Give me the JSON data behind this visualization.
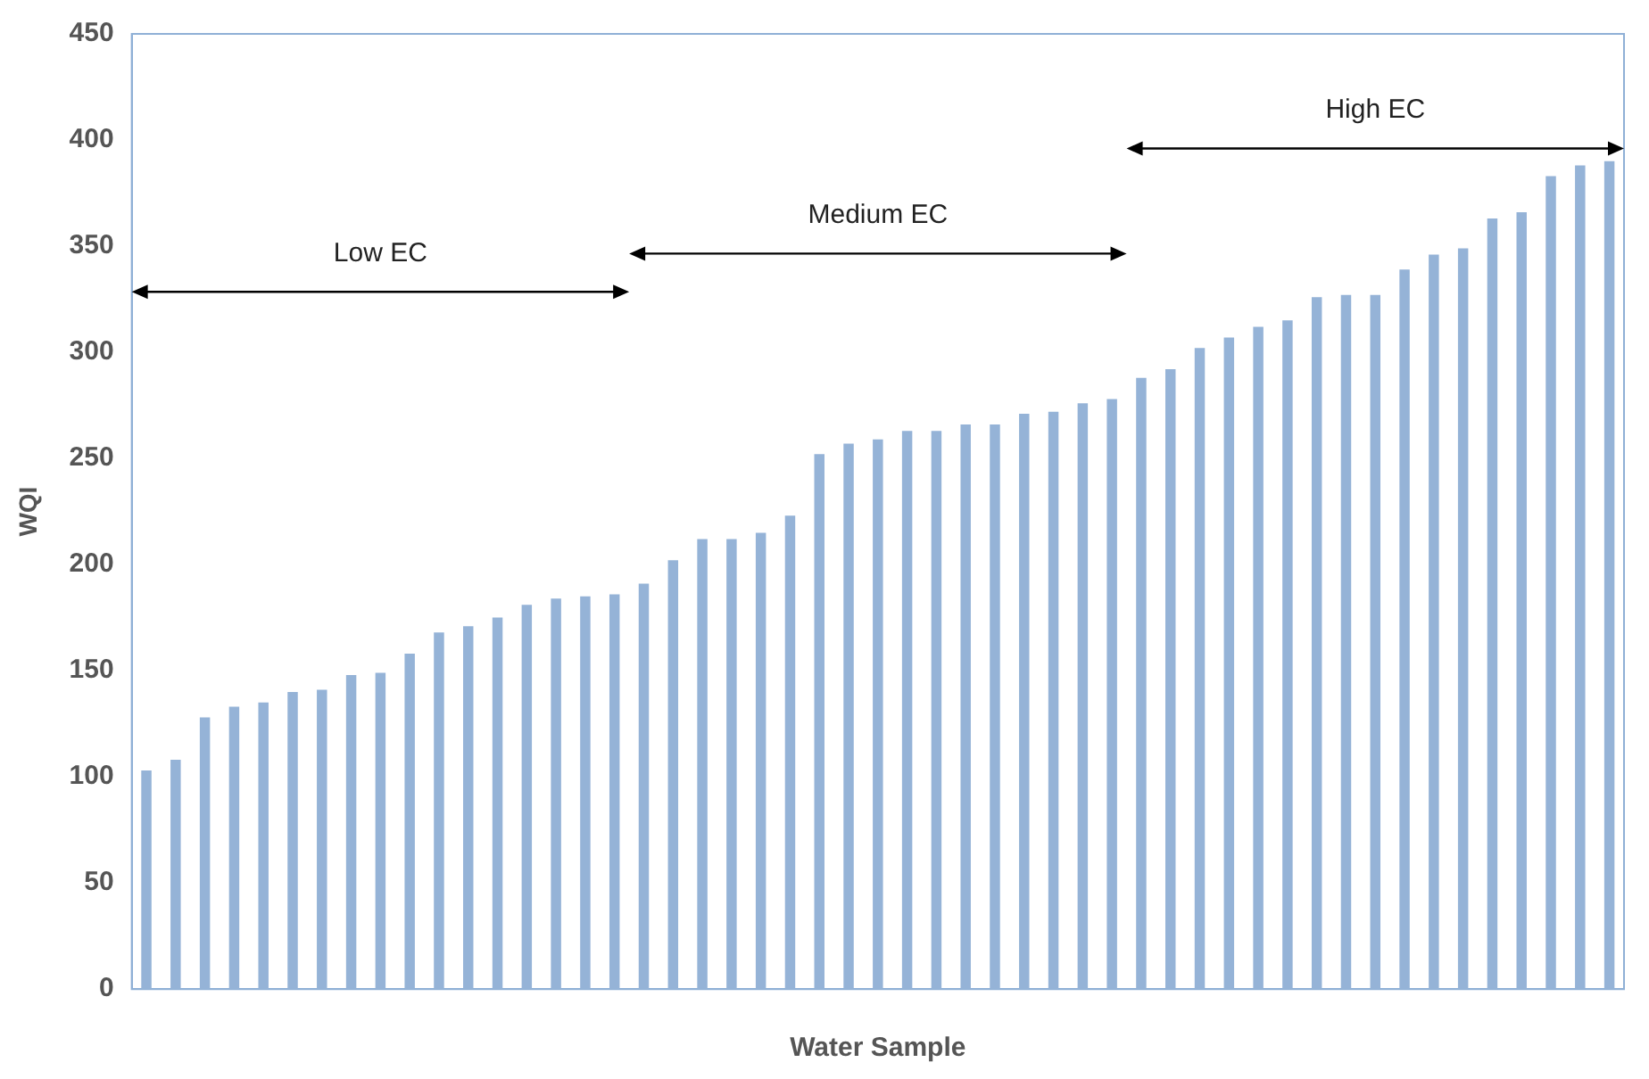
{
  "chart_data": {
    "type": "bar",
    "xlabel": "Water Sample",
    "ylabel": "WQI",
    "categories": [
      null,
      null,
      null,
      null,
      null,
      null,
      null,
      null,
      null,
      null,
      null,
      null,
      null,
      null,
      null,
      null,
      null,
      null,
      null,
      null,
      null,
      null,
      null,
      null,
      null,
      null,
      null,
      null,
      null,
      null,
      null,
      null,
      null,
      null,
      null,
      null,
      null,
      null,
      null,
      null,
      null,
      null,
      null,
      null,
      null,
      null,
      null,
      null,
      null,
      null,
      null
    ],
    "values": [
      103,
      108,
      128,
      133,
      135,
      140,
      141,
      148,
      149,
      158,
      168,
      171,
      175,
      181,
      184,
      185,
      186,
      191,
      202,
      212,
      212,
      215,
      223,
      252,
      257,
      259,
      263,
      263,
      266,
      266,
      271,
      272,
      276,
      278,
      288,
      292,
      302,
      307,
      312,
      315,
      326,
      327,
      327,
      339,
      346,
      349,
      363,
      366,
      383,
      388,
      390
    ],
    "color": "#95b3d7",
    "ylim": [
      0,
      450
    ],
    "yticks": [
      0,
      50,
      100,
      150,
      200,
      250,
      300,
      350,
      400,
      450
    ],
    "grid": false,
    "annotations": [
      "Low EC",
      "Medium EC",
      "High EC"
    ]
  }
}
